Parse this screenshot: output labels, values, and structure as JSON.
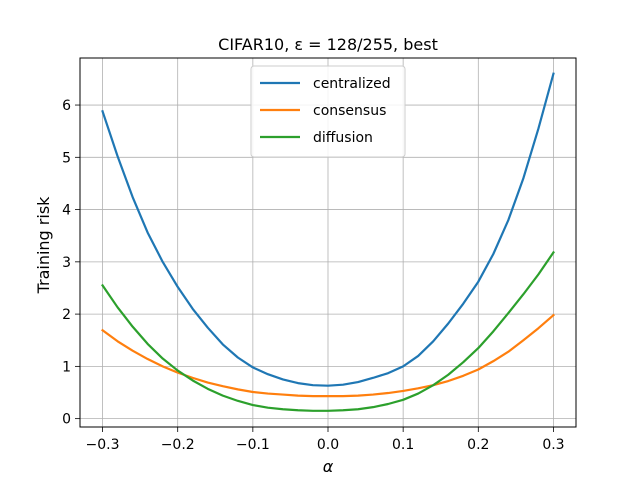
{
  "chart_data": {
    "type": "line",
    "title": "CIFAR10, ε = 128/255, best",
    "xlabel": "α",
    "ylabel": "Training risk",
    "xlim": [
      -0.33,
      0.33
    ],
    "ylim": [
      -0.16,
      6.9
    ],
    "xticks": [
      -0.3,
      -0.2,
      -0.1,
      0.0,
      0.1,
      0.2,
      0.3
    ],
    "xtick_labels": [
      "−0.3",
      "−0.2",
      "−0.1",
      "0.0",
      "0.1",
      "0.2",
      "0.3"
    ],
    "yticks": [
      0,
      1,
      2,
      3,
      4,
      5,
      6
    ],
    "ytick_labels": [
      "0",
      "1",
      "2",
      "3",
      "4",
      "5",
      "6"
    ],
    "grid": true,
    "legend_position": "top-center",
    "x": [
      -0.3,
      -0.28,
      -0.26,
      -0.24,
      -0.22,
      -0.2,
      -0.18,
      -0.16,
      -0.14,
      -0.12,
      -0.1,
      -0.08,
      -0.06,
      -0.04,
      -0.02,
      0.0,
      0.02,
      0.04,
      0.06,
      0.08,
      0.1,
      0.12,
      0.14,
      0.16,
      0.18,
      0.2,
      0.22,
      0.24,
      0.26,
      0.28,
      0.3
    ],
    "series": [
      {
        "name": "centralized",
        "color": "#1f77b4",
        "values": [
          5.88,
          5.02,
          4.24,
          3.56,
          3.0,
          2.52,
          2.1,
          1.74,
          1.42,
          1.17,
          0.98,
          0.85,
          0.75,
          0.68,
          0.64,
          0.63,
          0.65,
          0.7,
          0.78,
          0.87,
          1.0,
          1.2,
          1.48,
          1.82,
          2.2,
          2.62,
          3.15,
          3.8,
          4.6,
          5.55,
          6.6
        ]
      },
      {
        "name": "consensus",
        "color": "#ff7f0e",
        "values": [
          1.69,
          1.48,
          1.3,
          1.14,
          1.0,
          0.88,
          0.78,
          0.69,
          0.62,
          0.56,
          0.51,
          0.48,
          0.46,
          0.44,
          0.43,
          0.43,
          0.43,
          0.44,
          0.46,
          0.49,
          0.53,
          0.58,
          0.64,
          0.72,
          0.82,
          0.94,
          1.1,
          1.28,
          1.5,
          1.73,
          1.98
        ]
      },
      {
        "name": "diffusion",
        "color": "#2ca02c",
        "values": [
          2.55,
          2.13,
          1.76,
          1.43,
          1.15,
          0.92,
          0.73,
          0.57,
          0.44,
          0.34,
          0.26,
          0.21,
          0.18,
          0.16,
          0.15,
          0.15,
          0.16,
          0.18,
          0.22,
          0.28,
          0.36,
          0.48,
          0.64,
          0.84,
          1.08,
          1.35,
          1.67,
          2.02,
          2.38,
          2.76,
          3.18
        ]
      }
    ]
  }
}
